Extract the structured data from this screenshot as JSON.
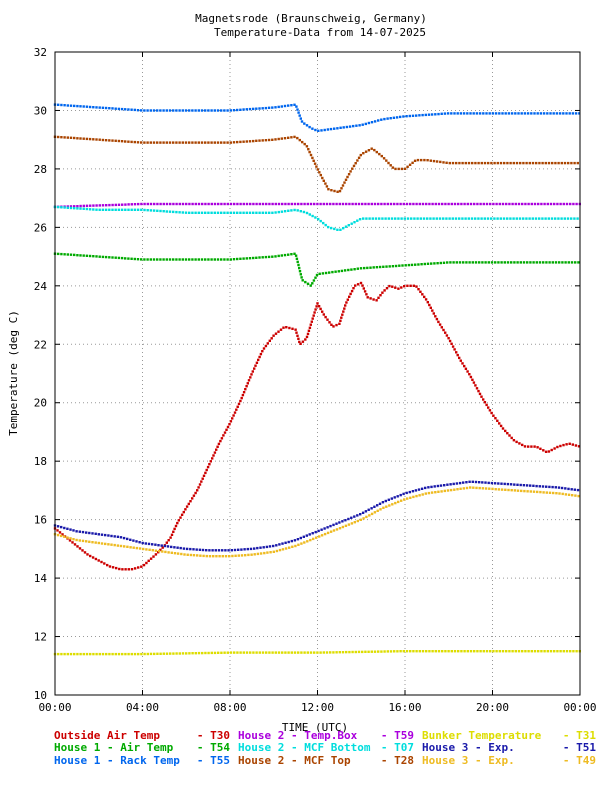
{
  "chart_data": {
    "type": "scatter",
    "title": "Magnetsrode (Braunschweig, Germany)",
    "subtitle": "Temperature-Data from 14-07-2025",
    "xlabel": "TIME (UTC)",
    "ylabel": "Temperature (deg C)",
    "xlim": [
      0,
      24
    ],
    "ylim": [
      10,
      32
    ],
    "xticks": [
      "00:00",
      "04:00",
      "08:00",
      "12:00",
      "16:00",
      "20:00",
      "00:00"
    ],
    "yticks": [
      "10",
      "12",
      "14",
      "16",
      "18",
      "20",
      "22",
      "24",
      "26",
      "28",
      "30",
      "32"
    ],
    "grid": true,
    "legend_position": "bottom",
    "series": [
      {
        "name": "Outside Air Temp",
        "code": "T30",
        "color": "#cc0000",
        "x": [
          0,
          0.5,
          1,
          1.5,
          2,
          2.5,
          3,
          3.5,
          4,
          4.3,
          4.6,
          5,
          5.3,
          5.6,
          6,
          6.5,
          7,
          7.5,
          8,
          8.5,
          9,
          9.5,
          10,
          10.5,
          11,
          11.2,
          11.5,
          12,
          12.3,
          12.7,
          13,
          13.3,
          13.7,
          14,
          14.3,
          14.7,
          15,
          15.3,
          15.7,
          16,
          16.5,
          17,
          17.5,
          18,
          18.5,
          19,
          19.5,
          20,
          20.5,
          21,
          21.5,
          22,
          22.5,
          23,
          23.5,
          24
        ],
        "y": [
          15.7,
          15.4,
          15.1,
          14.8,
          14.6,
          14.4,
          14.3,
          14.3,
          14.4,
          14.6,
          14.8,
          15.1,
          15.4,
          15.9,
          16.4,
          17.0,
          17.8,
          18.6,
          19.3,
          20.1,
          21.0,
          21.8,
          22.3,
          22.6,
          22.5,
          22.0,
          22.2,
          23.4,
          23.0,
          22.6,
          22.7,
          23.4,
          24.0,
          24.1,
          23.6,
          23.5,
          23.8,
          24.0,
          23.9,
          24.0,
          24.0,
          23.5,
          22.8,
          22.2,
          21.5,
          20.9,
          20.2,
          19.6,
          19.1,
          18.7,
          18.5,
          18.5,
          18.3,
          18.5,
          18.6,
          18.5
        ]
      },
      {
        "name": "House 1 - Air  Temp",
        "code": "T54",
        "color": "#00aa00",
        "x": [
          0,
          2,
          4,
          6,
          8,
          10,
          11,
          11.3,
          11.7,
          12,
          14,
          16,
          18,
          20,
          22,
          24
        ],
        "y": [
          25.1,
          25.0,
          24.9,
          24.9,
          24.9,
          25.0,
          25.1,
          24.2,
          24.0,
          24.4,
          24.6,
          24.7,
          24.8,
          24.8,
          24.8,
          24.8
        ]
      },
      {
        "name": "House 1 - Rack Temp",
        "code": "T55",
        "color": "#0066ee",
        "x": [
          0,
          2,
          4,
          6,
          8,
          10,
          11,
          11.3,
          11.7,
          12,
          13,
          14,
          15,
          16,
          18,
          20,
          22,
          24
        ],
        "y": [
          30.2,
          30.1,
          30.0,
          30.0,
          30.0,
          30.1,
          30.2,
          29.6,
          29.4,
          29.3,
          29.4,
          29.5,
          29.7,
          29.8,
          29.9,
          29.9,
          29.9,
          29.9
        ]
      },
      {
        "name": "House 2 - Temp.Box",
        "code": "T59",
        "color": "#aa00dd",
        "x": [
          0,
          4,
          8,
          12,
          16,
          20,
          24
        ],
        "y": [
          26.7,
          26.8,
          26.8,
          26.8,
          26.8,
          26.8,
          26.8
        ]
      },
      {
        "name": "House 2 - MCF Bottom",
        "code": "T07",
        "color": "#00dddd",
        "x": [
          0,
          2,
          4,
          6,
          8,
          10,
          11,
          11.5,
          12,
          12.5,
          13,
          13.5,
          14,
          15,
          16,
          18,
          20,
          22,
          24
        ],
        "y": [
          26.7,
          26.6,
          26.6,
          26.5,
          26.5,
          26.5,
          26.6,
          26.5,
          26.3,
          26.0,
          25.9,
          26.1,
          26.3,
          26.3,
          26.3,
          26.3,
          26.3,
          26.3,
          26.3
        ]
      },
      {
        "name": "House 2 - MCF Top",
        "code": "T28",
        "color": "#aa4400",
        "x": [
          0,
          2,
          4,
          6,
          8,
          10,
          11,
          11.5,
          12,
          12.5,
          13,
          13.5,
          14,
          14.5,
          15,
          15.5,
          16,
          16.5,
          17,
          18,
          20,
          22,
          24
        ],
        "y": [
          29.1,
          29.0,
          28.9,
          28.9,
          28.9,
          29.0,
          29.1,
          28.8,
          28.0,
          27.3,
          27.2,
          27.9,
          28.5,
          28.7,
          28.4,
          28.0,
          28.0,
          28.3,
          28.3,
          28.2,
          28.2,
          28.2,
          28.2
        ]
      },
      {
        "name": "Bunker Temperature",
        "code": "T31",
        "color": "#dddd00",
        "x": [
          0,
          4,
          8,
          12,
          16,
          20,
          24
        ],
        "y": [
          11.4,
          11.4,
          11.45,
          11.45,
          11.5,
          11.5,
          11.5
        ]
      },
      {
        "name": "House 3 - Exp.",
        "code": "T51",
        "color": "#1a1aaa",
        "x": [
          0,
          1,
          2,
          3,
          4,
          5,
          6,
          7,
          8,
          9,
          10,
          11,
          12,
          13,
          14,
          15,
          16,
          17,
          18,
          19,
          20,
          21,
          22,
          23,
          24
        ],
        "y": [
          15.8,
          15.6,
          15.5,
          15.4,
          15.2,
          15.1,
          15.0,
          14.95,
          14.95,
          15.0,
          15.1,
          15.3,
          15.6,
          15.9,
          16.2,
          16.6,
          16.9,
          17.1,
          17.2,
          17.3,
          17.25,
          17.2,
          17.15,
          17.1,
          17.0
        ]
      },
      {
        "name": "House 3 - Exp.",
        "code": "T49",
        "color": "#eebb22",
        "x": [
          0,
          1,
          2,
          3,
          4,
          5,
          6,
          7,
          8,
          9,
          10,
          11,
          12,
          13,
          14,
          15,
          16,
          17,
          18,
          19,
          20,
          21,
          22,
          23,
          24
        ],
        "y": [
          15.5,
          15.3,
          15.2,
          15.1,
          15.0,
          14.9,
          14.8,
          14.75,
          14.75,
          14.8,
          14.9,
          15.1,
          15.4,
          15.7,
          16.0,
          16.4,
          16.7,
          16.9,
          17.0,
          17.1,
          17.05,
          17.0,
          16.95,
          16.9,
          16.8
        ]
      }
    ]
  }
}
